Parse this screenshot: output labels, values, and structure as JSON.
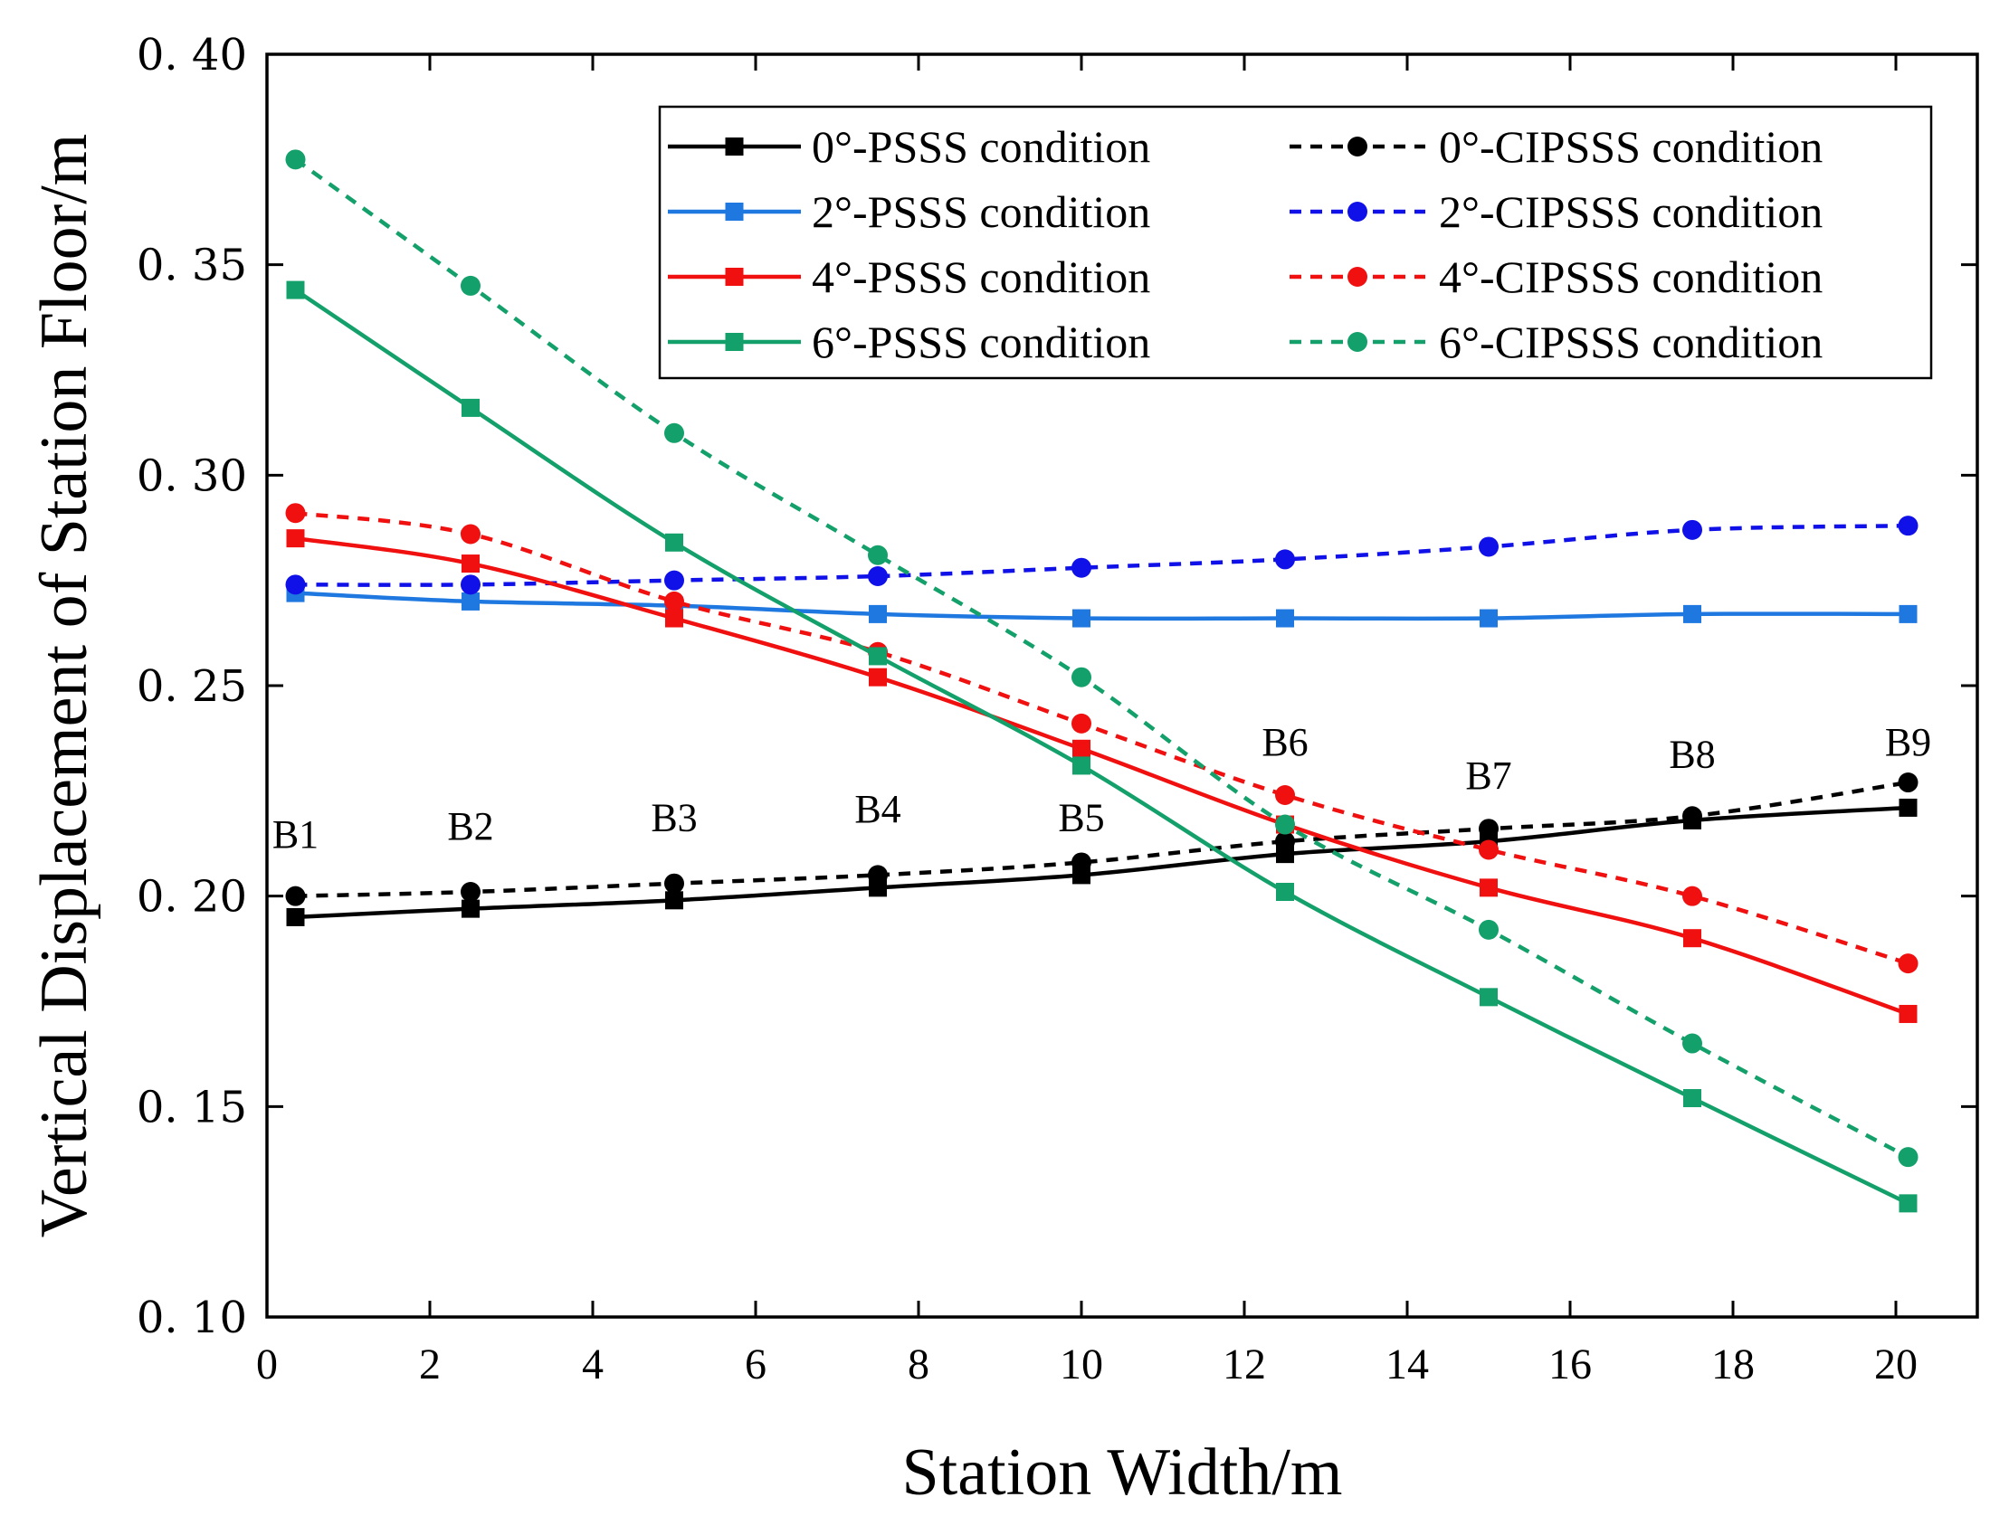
{
  "chart_data": {
    "type": "line",
    "title": "",
    "xlabel": "Station Width/m",
    "ylabel": "Vertical Displacement of Station Floor/m",
    "xlim": [
      0,
      21
    ],
    "ylim": [
      0.1,
      0.4
    ],
    "x_ticks": [
      0,
      2,
      4,
      6,
      8,
      10,
      12,
      14,
      16,
      18,
      20
    ],
    "x_tick_labels": [
      "0",
      "2",
      "4",
      "6",
      "8",
      "10",
      "12",
      "14",
      "16",
      "18",
      "20"
    ],
    "y_ticks": [
      0.1,
      0.15,
      0.2,
      0.25,
      0.3,
      0.35,
      0.4
    ],
    "y_tick_labels": [
      "0. 10",
      "0. 15",
      "0. 20",
      "0. 25",
      "0. 30",
      "0. 35",
      "0. 40"
    ],
    "grid": false,
    "legend_position": "top-right",
    "x": [
      0.35,
      2.5,
      5.0,
      7.5,
      10.0,
      12.5,
      15.0,
      17.5,
      20.15
    ],
    "series": [
      {
        "name": "0°-PSSS condition",
        "color": "#000000",
        "dash": "solid",
        "marker": "square",
        "values": [
          0.195,
          0.197,
          0.199,
          0.202,
          0.205,
          0.21,
          0.213,
          0.218,
          0.221
        ]
      },
      {
        "name": "0°-CIPSSS condition",
        "color": "#000000",
        "dash": "dashed",
        "marker": "circle",
        "values": [
          0.2,
          0.201,
          0.203,
          0.205,
          0.208,
          0.213,
          0.216,
          0.219,
          0.227
        ]
      },
      {
        "name": "2°-PSSS condition",
        "color": "#1f78e0",
        "dash": "solid",
        "marker": "square",
        "values": [
          0.272,
          0.27,
          0.269,
          0.267,
          0.266,
          0.266,
          0.266,
          0.267,
          0.267
        ]
      },
      {
        "name": "2°-CIPSSS condition",
        "color": "#1010e8",
        "dash": "dashed",
        "marker": "circle",
        "values": [
          0.274,
          0.274,
          0.275,
          0.276,
          0.278,
          0.28,
          0.283,
          0.287,
          0.288
        ]
      },
      {
        "name": "4°-PSSS condition",
        "color": "#f01010",
        "dash": "solid",
        "marker": "square",
        "values": [
          0.285,
          0.279,
          0.266,
          0.252,
          0.235,
          0.217,
          0.202,
          0.19,
          0.172
        ]
      },
      {
        "name": "4°-CIPSSS condition",
        "color": "#f01010",
        "dash": "dashed",
        "marker": "circle",
        "values": [
          0.291,
          0.286,
          0.27,
          0.258,
          0.241,
          0.224,
          0.211,
          0.2,
          0.184
        ]
      },
      {
        "name": "6°-PSSS condition",
        "color": "#13a06a",
        "dash": "solid",
        "marker": "square",
        "values": [
          0.344,
          0.316,
          0.284,
          0.257,
          0.231,
          0.201,
          0.176,
          0.152,
          0.127
        ]
      },
      {
        "name": "6°-CIPSSS condition",
        "color": "#13a06a",
        "dash": "dashed",
        "marker": "circle",
        "values": [
          0.375,
          0.345,
          0.31,
          0.281,
          0.252,
          0.217,
          0.192,
          0.165,
          0.138
        ]
      }
    ],
    "annotations": [
      {
        "text": "B1",
        "x": 0.35,
        "y": 0.2115
      },
      {
        "text": "B2",
        "x": 2.5,
        "y": 0.2135
      },
      {
        "text": "B3",
        "x": 5.0,
        "y": 0.2155
      },
      {
        "text": "B4",
        "x": 7.5,
        "y": 0.2175
      },
      {
        "text": "B5",
        "x": 10.0,
        "y": 0.2155
      },
      {
        "text": "B6",
        "x": 12.5,
        "y": 0.2335
      },
      {
        "text": "B7",
        "x": 15.0,
        "y": 0.2255
      },
      {
        "text": "B8",
        "x": 17.5,
        "y": 0.2305
      },
      {
        "text": "B9",
        "x": 20.15,
        "y": 0.2335
      }
    ]
  }
}
